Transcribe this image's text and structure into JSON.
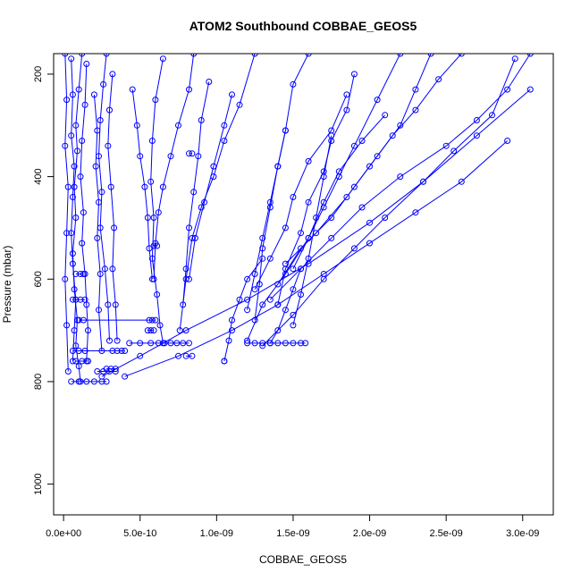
{
  "chart_data": {
    "type": "line",
    "title": "ATOM2 Southbound COBBAE_GEOS5",
    "xlabel": "COBBAE_GEOS5",
    "ylabel": "Pressure (mbar)",
    "xlim": [
      -6.5e-11,
      3.2e-09
    ],
    "ylim": [
      1060,
      160
    ],
    "y_reversed": true,
    "x_ticks": [
      0,
      5e-10,
      1e-09,
      1.5e-09,
      2e-09,
      2.5e-09,
      3e-09
    ],
    "x_tick_labels": [
      "0.0e+00",
      "5.0e-10",
      "1.0e-09",
      "1.5e-09",
      "2.0e-09",
      "2.5e-09",
      "3.0e-09"
    ],
    "y_ticks": [
      200,
      400,
      600,
      800,
      1000
    ],
    "y_tick_labels": [
      "200",
      "400",
      "600",
      "800",
      "1000"
    ],
    "grid": false,
    "series_color": "#0000ff",
    "marker": "open-circle",
    "series": [
      {
        "x": [
          1.2e-10,
          1e-10,
          8e-11,
          9e-11,
          7e-11,
          8e-11,
          6e-11,
          7e-11,
          9e-11,
          8e-11,
          1e-10,
          1.1e-10
        ],
        "y": [
          160,
          230,
          300,
          350,
          420,
          480,
          550,
          620,
          680,
          730,
          770,
          800
        ]
      },
      {
        "x": [
          5e-11,
          6e-11,
          5e-11,
          7e-11,
          6e-11,
          5e-11,
          6e-11,
          8e-11,
          7e-11,
          6e-11
        ],
        "y": [
          170,
          240,
          320,
          380,
          440,
          510,
          570,
          640,
          700,
          760
        ]
      },
      {
        "x": [
          1.5e-10,
          1.4e-10,
          1.2e-10,
          1.1e-10,
          1.3e-10,
          1.2e-10,
          1.4e-10,
          1.5e-10,
          1.6e-10,
          1.5e-10
        ],
        "y": [
          180,
          260,
          330,
          400,
          470,
          530,
          590,
          650,
          700,
          760
        ]
      },
      {
        "x": [
          2.8e-10,
          2.6e-10,
          2.4e-10,
          2.3e-10,
          2.5e-10,
          2.4e-10,
          2.7e-10,
          2.9e-10,
          3e-10
        ],
        "y": [
          160,
          220,
          290,
          360,
          430,
          500,
          580,
          650,
          720
        ]
      },
      {
        "x": [
          3.2e-10,
          3e-10,
          2.9e-10,
          3.1e-10,
          3.3e-10,
          3.2e-10,
          3.4e-10,
          3.5e-10
        ],
        "y": [
          200,
          270,
          340,
          420,
          500,
          580,
          650,
          720
        ]
      },
      {
        "x": [
          2e-10,
          2.2e-10,
          2.1e-10,
          2.3e-10,
          2.2e-10,
          2.4e-10,
          2.3e-10,
          2.5e-10
        ],
        "y": [
          240,
          310,
          380,
          450,
          520,
          590,
          660,
          740
        ]
      },
      {
        "x": [
          6.5e-10,
          6e-10,
          5.8e-10,
          5.7e-10,
          5.9e-10,
          5.8e-10,
          6.1e-10,
          6.3e-10,
          6.5e-10
        ],
        "y": [
          170,
          250,
          330,
          410,
          480,
          560,
          630,
          690,
          725
        ]
      },
      {
        "x": [
          8.5e-10,
          8.2e-10,
          7.5e-10,
          7e-10,
          6.5e-10,
          6.2e-10,
          6e-10,
          5.9e-10
        ],
        "y": [
          160,
          230,
          300,
          360,
          420,
          470,
          530,
          600
        ]
      },
      {
        "x": [
          4.5e-10,
          4.8e-10,
          5e-10,
          5.3e-10,
          5.5e-10,
          5.6e-10,
          5.8e-10
        ],
        "y": [
          230,
          300,
          360,
          420,
          480,
          540,
          600
        ]
      },
      {
        "x": [
          9.5e-10,
          9e-10,
          8.8e-10,
          8.5e-10,
          8.2e-10,
          8e-10,
          7.8e-10
        ],
        "y": [
          215,
          290,
          360,
          430,
          500,
          580,
          650
        ]
      },
      {
        "x": [
          1.25e-09,
          1.15e-09,
          1.05e-09,
          9.8e-10,
          9e-10,
          8.4e-10,
          8e-10,
          7.6e-10
        ],
        "y": [
          160,
          260,
          330,
          400,
          460,
          520,
          600,
          700
        ]
      },
      {
        "x": [
          1.1e-09,
          1.05e-09,
          9.8e-10,
          9.2e-10,
          8.6e-10,
          8.2e-10
        ],
        "y": [
          240,
          300,
          380,
          450,
          520,
          600
        ]
      },
      {
        "x": [
          3.05e-09,
          2.9e-09,
          2.7e-09,
          2.5e-09,
          2.2e-09,
          1.95e-09,
          1.75e-09,
          1.55e-09,
          1.35e-09
        ],
        "y": [
          160,
          230,
          290,
          340,
          400,
          460,
          520,
          580,
          640
        ]
      },
      {
        "x": [
          2.95e-09,
          2.8e-09,
          2.55e-09,
          2.35e-09,
          2.1e-09,
          1.9e-09,
          1.7e-09,
          1.5e-09,
          1.3e-09
        ],
        "y": [
          170,
          280,
          350,
          410,
          480,
          540,
          600,
          670,
          730
        ]
      },
      {
        "x": [
          2.6e-09,
          2.45e-09,
          2.3e-09,
          2.15e-09,
          2e-09,
          1.85e-09,
          1.65e-09,
          1.45e-09
        ],
        "y": [
          160,
          210,
          270,
          320,
          380,
          440,
          510,
          570
        ]
      },
      {
        "x": [
          2.4e-09,
          2.3e-09,
          2.2e-09,
          2.05e-09,
          1.9e-09,
          1.75e-09,
          1.55e-09,
          1.4e-09
        ],
        "y": [
          160,
          230,
          300,
          360,
          420,
          480,
          540,
          610
        ]
      },
      {
        "x": [
          2.2e-09,
          2.05e-09,
          1.9e-09,
          1.8e-09,
          1.7e-09,
          1.6e-09,
          1.5e-09
        ],
        "y": [
          160,
          250,
          340,
          400,
          460,
          520,
          580
        ]
      },
      {
        "x": [
          1.9e-09,
          1.85e-09,
          1.75e-09,
          1.7e-09,
          1.6e-09,
          1.55e-09,
          1.45e-09,
          1.4e-09
        ],
        "y": [
          200,
          270,
          330,
          390,
          450,
          510,
          580,
          650
        ]
      },
      {
        "x": [
          1.6e-09,
          1.5e-09,
          1.45e-09,
          1.4e-09,
          1.35e-09,
          1.3e-09,
          1.25e-09,
          1.2e-09
        ],
        "y": [
          160,
          220,
          310,
          380,
          450,
          520,
          590,
          660
        ]
      },
      {
        "x": [
          1.85e-09,
          1.75e-09,
          1.6e-09,
          1.5e-09,
          1.45e-09,
          1.35e-09,
          1.25e-09
        ],
        "y": [
          240,
          310,
          370,
          440,
          500,
          560,
          620
        ]
      },
      {
        "x": [
          2.1e-09,
          1.95e-09,
          1.8e-09,
          1.7e-09,
          1.6e-09,
          1.45e-09,
          1.3e-09,
          1.2e-09
        ],
        "y": [
          280,
          330,
          390,
          450,
          520,
          590,
          650,
          720
        ]
      },
      {
        "x": [
          1.45e-09,
          1.4e-09,
          1.35e-09,
          1.3e-09,
          1.28e-09,
          1.25e-09
        ],
        "y": [
          310,
          380,
          460,
          540,
          610,
          680
        ]
      },
      {
        "x": [
          1.75e-09,
          1.7e-09,
          1.65e-09,
          1.6e-09,
          1.55e-09,
          1.5e-09
        ],
        "y": [
          320,
          400,
          480,
          560,
          630,
          690
        ]
      },
      {
        "x": [
          2.9e-09,
          2.6e-09,
          2.3e-09,
          2e-09,
          1.7e-09,
          1.4e-09,
          1.1e-09,
          7.5e-10,
          4e-10
        ],
        "y": [
          330,
          410,
          470,
          530,
          590,
          650,
          700,
          750,
          790
        ]
      },
      {
        "x": [
          3.05e-09,
          2.7e-09,
          2.35e-09,
          2e-09,
          1.6e-09,
          1.2e-09,
          8e-10,
          5e-10,
          2.5e-10
        ],
        "y": [
          230,
          320,
          410,
          490,
          570,
          640,
          700,
          750,
          790
        ]
      },
      {
        "x": [
          1.3e-09,
          1.2e-09,
          1.15e-09,
          1.1e-09,
          1.08e-09,
          1.05e-09
        ],
        "y": [
          560,
          600,
          640,
          680,
          720,
          760
        ]
      },
      {
        "x": [
          1.55e-09,
          1.5e-09,
          1.45e-09,
          1.4e-09,
          1.35e-09
        ],
        "y": [
          580,
          620,
          660,
          700,
          725
        ]
      },
      {
        "x": [
          1e-11,
          2e-11,
          1e-11,
          3e-11,
          2e-11,
          1e-11,
          2e-11,
          3e-11
        ],
        "y": [
          160,
          250,
          340,
          420,
          510,
          600,
          690,
          780
        ]
      }
    ],
    "level_runs": [
      {
        "y": 800,
        "x": [
          5e-11,
          1e-10,
          1.5e-10,
          2e-10,
          2.5e-10,
          2.8e-10
        ]
      },
      {
        "y": 780,
        "x": [
          2.2e-10,
          2.6e-10,
          3e-10,
          3.4e-10
        ]
      },
      {
        "y": 775,
        "x": [
          2.8e-10,
          3.1e-10,
          3.4e-10
        ]
      },
      {
        "y": 760,
        "x": [
          8e-11,
          1.2e-10,
          1.6e-10
        ]
      },
      {
        "y": 740,
        "x": [
          6e-11,
          1e-10,
          1.4e-10,
          3.2e-10,
          3.5e-10,
          3.8e-10,
          4e-10
        ]
      },
      {
        "y": 725,
        "x": [
          4.3e-10,
          5e-10,
          5.7e-10,
          6.2e-10,
          6.6e-10,
          7e-10,
          7.4e-10,
          7.8e-10,
          8.2e-10
        ]
      },
      {
        "y": 725,
        "x": [
          1.2e-09,
          1.25e-09,
          1.3e-09,
          1.35e-09,
          1.4e-09,
          1.45e-09,
          1.5e-09,
          1.55e-09,
          1.58e-09
        ]
      },
      {
        "y": 750,
        "x": [
          8e-10,
          8.4e-10
        ]
      },
      {
        "y": 760,
        "x": [
          1.05e-09
        ]
      },
      {
        "y": 700,
        "x": [
          5.5e-10,
          5.7e-10,
          5.9e-10
        ]
      },
      {
        "y": 680,
        "x": [
          5.6e-10,
          5.8e-10,
          6e-10,
          1e-10,
          1.3e-10
        ]
      },
      {
        "y": 640,
        "x": [
          6e-11,
          8e-11,
          1.1e-10,
          1.4e-10
        ]
      },
      {
        "y": 590,
        "x": [
          8e-11,
          1.1e-10,
          1.3e-10
        ]
      },
      {
        "y": 535,
        "x": [
          5.9e-10,
          6.1e-10
        ]
      },
      {
        "y": 355,
        "x": [
          8.2e-10,
          8.4e-10
        ]
      }
    ]
  }
}
